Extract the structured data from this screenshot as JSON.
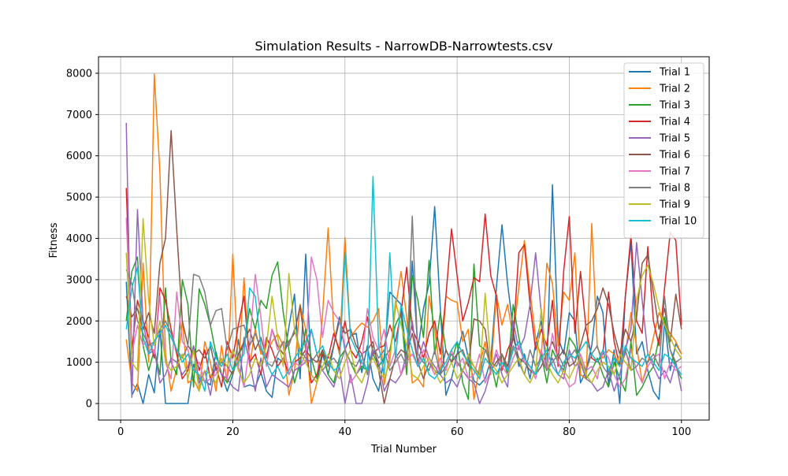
{
  "chart_data": {
    "type": "line",
    "title": "Simulation Results - NarrowDB-Narrowtests.csv",
    "xlabel": "Trial Number",
    "ylabel": "Fitness",
    "xlim": [
      -3.95,
      104.95
    ],
    "ylim": [
      -400,
      8400
    ],
    "xticks": [
      0,
      20,
      40,
      60,
      80,
      100
    ],
    "yticks": [
      0,
      1000,
      2000,
      3000,
      4000,
      5000,
      6000,
      7000,
      8000
    ],
    "grid": true,
    "legend_position": "top-right",
    "x": [
      1,
      2,
      3,
      4,
      5,
      6,
      7,
      8,
      9,
      10,
      11,
      12,
      13,
      14,
      15,
      16,
      17,
      18,
      19,
      20,
      21,
      22,
      23,
      24,
      25,
      26,
      27,
      28,
      29,
      30,
      31,
      32,
      33,
      34,
      35,
      36,
      37,
      38,
      39,
      40,
      41,
      42,
      43,
      44,
      45,
      46,
      47,
      48,
      49,
      50,
      51,
      52,
      53,
      54,
      55,
      56,
      57,
      58,
      59,
      60,
      61,
      62,
      63,
      64,
      65,
      66,
      67,
      68,
      69,
      70,
      71,
      72,
      73,
      74,
      75,
      76,
      77,
      78,
      79,
      80,
      81,
      82,
      83,
      84,
      85,
      86,
      87,
      88,
      89,
      90,
      91,
      92,
      93,
      94,
      95,
      96,
      97,
      98,
      99,
      100
    ],
    "series": [
      {
        "name": "Trial 1",
        "color": "#1f77b4",
        "values": [
          2950,
          200,
          480,
          0,
          700,
          260,
          1800,
          0,
          0,
          0,
          0,
          0,
          950,
          600,
          550,
          450,
          1250,
          700,
          300,
          700,
          1550,
          400,
          450,
          400,
          750,
          300,
          150,
          1100,
          1000,
          1850,
          2650,
          600,
          3620,
          700,
          500,
          1200,
          700,
          1400,
          2100,
          1300,
          1650,
          1700,
          750,
          1400,
          600,
          300,
          1150,
          2700,
          2550,
          2400,
          1050,
          3450,
          1300,
          2300,
          2900,
          4770,
          2300,
          200,
          600,
          1200,
          1750,
          1100,
          550,
          450,
          600,
          1050,
          2800,
          4330,
          2900,
          1800,
          900,
          1200,
          600,
          1450,
          2000,
          800,
          5300,
          1600,
          1200,
          2200,
          2000,
          500,
          800,
          1400,
          2600,
          2200,
          450,
          1300,
          0,
          2600,
          3900,
          1200,
          1500,
          800,
          300,
          100,
          2000,
          800,
          1450,
          1200
        ]
      },
      {
        "name": "Trial 2",
        "color": "#ff7f0e",
        "values": [
          1550,
          500,
          300,
          3400,
          1000,
          7980,
          5600,
          1200,
          300,
          850,
          2000,
          500,
          600,
          300,
          1500,
          1000,
          300,
          1400,
          500,
          3620,
          800,
          3040,
          900,
          1800,
          1200,
          1200,
          1500,
          1680,
          1400,
          200,
          800,
          2400,
          1800,
          0,
          500,
          2150,
          4250,
          1800,
          1200,
          4020,
          1600,
          1800,
          1950,
          1850,
          2000,
          2300,
          450,
          1200,
          2300,
          3200,
          2100,
          500,
          600,
          400,
          2600,
          1800,
          700,
          2600,
          2500,
          2450,
          1500,
          1800,
          100,
          900,
          1500,
          700,
          2650,
          1900,
          2400,
          1600,
          2800,
          3950,
          2700,
          1600,
          1100,
          3400,
          2900,
          1400,
          2700,
          2500,
          3650,
          700,
          600,
          4360,
          1350,
          1100,
          1300,
          1200,
          900,
          1200,
          2200,
          1400,
          500,
          1000,
          1600,
          2200,
          1900,
          1700,
          1500,
          1200
        ]
      },
      {
        "name": "Trial 3",
        "color": "#2ca02c",
        "values": [
          2000,
          3200,
          3550,
          1400,
          800,
          1300,
          700,
          2800,
          1000,
          700,
          3000,
          2400,
          400,
          2780,
          2400,
          1900,
          1200,
          700,
          500,
          800,
          1200,
          1400,
          2300,
          1800,
          2500,
          2300,
          3100,
          3430,
          2200,
          1300,
          500,
          1000,
          1800,
          1100,
          600,
          1300,
          700,
          500,
          1100,
          1300,
          1000,
          700,
          900,
          800,
          1200,
          900,
          1100,
          1300,
          1900,
          2200,
          700,
          3100,
          2500,
          1600,
          3470,
          1200,
          2200,
          1300,
          1000,
          1500,
          500,
          100,
          3380,
          1400,
          1300,
          1000,
          400,
          1200,
          700,
          2400,
          1600,
          1000,
          800,
          700,
          1200,
          500,
          1300,
          1000,
          800,
          1600,
          1400,
          1000,
          600,
          800,
          1100,
          700,
          400,
          1000,
          600,
          300,
          1500,
          200,
          400,
          700,
          900,
          1600,
          2100,
          1300,
          900,
          600
        ]
      },
      {
        "name": "Trial 4",
        "color": "#d62728",
        "values": [
          5220,
          1300,
          2500,
          2000,
          1600,
          1100,
          2800,
          2500,
          1800,
          1200,
          600,
          800,
          1400,
          800,
          1300,
          600,
          900,
          400,
          1500,
          1100,
          1900,
          2600,
          1000,
          1200,
          700,
          1600,
          1300,
          900,
          1100,
          700,
          1000,
          1100,
          1300,
          500,
          700,
          1200,
          1100,
          1700,
          1300,
          2000,
          1300,
          1100,
          1500,
          2100,
          1200,
          1350,
          1400,
          1900,
          1500,
          2200,
          3300,
          1800,
          1500,
          1100,
          1700,
          2000,
          1200,
          2600,
          4230,
          3100,
          2000,
          2450,
          3050,
          2950,
          4590,
          3100,
          2600,
          800,
          1300,
          1600,
          3650,
          3850,
          2400,
          1300,
          1800,
          1400,
          2500,
          900,
          3200,
          4530,
          1700,
          3200,
          1800,
          1100,
          1000,
          1200,
          2700,
          1500,
          900,
          2600,
          4080,
          2000,
          1700,
          3800,
          2000,
          1400,
          2800,
          4150,
          3950,
          1900
        ]
      },
      {
        "name": "Trial 5",
        "color": "#9467bd",
        "values": [
          6800,
          150,
          4700,
          2000,
          1200,
          1300,
          500,
          700,
          1100,
          1000,
          700,
          900,
          1400,
          500,
          800,
          200,
          1000,
          700,
          600,
          400,
          300,
          1600,
          1000,
          300,
          1100,
          400,
          700,
          600,
          500,
          400,
          800,
          900,
          1000,
          1800,
          1200,
          800,
          600,
          400,
          900,
          0,
          700,
          0,
          0,
          500,
          1300,
          1000,
          300,
          600,
          500,
          700,
          1200,
          2000,
          1000,
          1500,
          1100,
          900,
          700,
          500,
          600,
          400,
          800,
          600,
          500,
          0,
          300,
          800,
          1200,
          700,
          400,
          2000,
          1300,
          1600,
          2400,
          3650,
          2200,
          800,
          1100,
          700,
          600,
          1300,
          900,
          1000,
          600,
          500,
          300,
          400,
          800,
          300,
          700,
          1300,
          1800,
          3900,
          2500,
          1200,
          900,
          600,
          800,
          500,
          1000,
          300
        ]
      },
      {
        "name": "Trial 6",
        "color": "#8c564b",
        "values": [
          2600,
          2100,
          2300,
          1800,
          2200,
          1700,
          3400,
          4000,
          6610,
          4200,
          2000,
          1400,
          1200,
          1300,
          1100,
          1400,
          800,
          1000,
          900,
          700,
          1200,
          1500,
          1800,
          1300,
          1600,
          1100,
          1800,
          1400,
          1200,
          1500,
          1700,
          2370,
          1300,
          1100,
          1000,
          1300,
          900,
          1400,
          2000,
          1700,
          1800,
          1400,
          1200,
          1300,
          1500,
          800,
          0,
          600,
          1100,
          1300,
          1200,
          1700,
          1000,
          600,
          1000,
          800,
          700,
          1300,
          1000,
          1200,
          1300,
          900,
          2050,
          2000,
          1800,
          800,
          1000,
          1200,
          900,
          1600,
          1100,
          1000,
          800,
          700,
          900,
          1200,
          1500,
          1100,
          1300,
          900,
          1000,
          1400,
          1900,
          2000,
          2300,
          2800,
          2400,
          1700,
          1200,
          1800,
          1500,
          2100,
          3400,
          3600,
          2700,
          1800,
          2300,
          1500,
          2650,
          1800
        ]
      },
      {
        "name": "Trial 7",
        "color": "#e377c2",
        "values": [
          4500,
          1200,
          1900,
          1400,
          1600,
          1200,
          2600,
          1000,
          600,
          2700,
          1500,
          1300,
          800,
          1000,
          500,
          600,
          700,
          1100,
          600,
          1300,
          900,
          400,
          1400,
          3130,
          2100,
          900,
          1800,
          1300,
          1500,
          700,
          1000,
          900,
          1200,
          3550,
          3000,
          1600,
          2500,
          2200,
          2000,
          1400,
          500,
          700,
          1000,
          2300,
          1600,
          1300,
          1800,
          900,
          1300,
          700,
          1000,
          1200,
          900,
          1300,
          1000,
          700,
          1100,
          800,
          1300,
          900,
          1100,
          600,
          700,
          1200,
          500,
          800,
          1300,
          900,
          700,
          1100,
          1400,
          1000,
          900,
          600,
          1300,
          800,
          1700,
          1000,
          700,
          400,
          500,
          1200,
          800,
          900,
          600,
          1300,
          1100,
          700,
          400,
          600,
          1300,
          800,
          500,
          900,
          1100,
          1200,
          600,
          1000,
          800,
          900
        ]
      },
      {
        "name": "Trial 8",
        "color": "#7f7f7f",
        "values": [
          3250,
          2900,
          2000,
          1700,
          1400,
          1500,
          1800,
          2000,
          1700,
          1300,
          1100,
          1400,
          3130,
          3080,
          2700,
          1900,
          2250,
          2300,
          1300,
          1800,
          1850,
          1900,
          1400,
          1700,
          1300,
          1000,
          900,
          1200,
          1500,
          1400,
          1800,
          1300,
          1100,
          1000,
          1200,
          800,
          1000,
          1100,
          900,
          1300,
          1000,
          900,
          1200,
          700,
          1400,
          1100,
          1300,
          800,
          1000,
          1200,
          900,
          4540,
          1200,
          1000,
          800,
          1300,
          700,
          900,
          1200,
          1000,
          800,
          1100,
          900,
          700,
          1300,
          1000,
          900,
          1200,
          800,
          1400,
          1000,
          700,
          1300,
          900,
          1100,
          800,
          1000,
          1200,
          900,
          1100,
          1300,
          1000,
          800,
          1200,
          1400,
          900,
          700,
          1100,
          1000,
          1300,
          800,
          900,
          1100,
          1000,
          1200,
          900,
          2600,
          1300,
          1000,
          1100
        ]
      },
      {
        "name": "Trial 9",
        "color": "#bcbd22",
        "values": [
          3650,
          1000,
          800,
          4480,
          2500,
          1400,
          2000,
          1000,
          800,
          900,
          1200,
          600,
          1300,
          300,
          800,
          700,
          500,
          1100,
          900,
          1300,
          800,
          500,
          700,
          1100,
          900,
          1400,
          2600,
          1600,
          900,
          3150,
          1800,
          1200,
          1000,
          700,
          500,
          900,
          1200,
          800,
          600,
          1000,
          1300,
          700,
          500,
          900,
          1100,
          800,
          600,
          1000,
          2500,
          1900,
          1400,
          700,
          600,
          900,
          1100,
          800,
          500,
          700,
          1000,
          600,
          800,
          1200,
          900,
          600,
          2670,
          1000,
          800,
          500,
          700,
          900,
          1100,
          700,
          500,
          800,
          2300,
          1000,
          700,
          500,
          800,
          600,
          900,
          1100,
          700,
          500,
          800,
          1000,
          900,
          700,
          1200,
          1000,
          800,
          2500,
          3100,
          3350,
          2900,
          2300,
          1900,
          1600,
          1300,
          1100
        ]
      },
      {
        "name": "Trial 10",
        "color": "#17becf",
        "values": [
          1800,
          2800,
          3300,
          1600,
          1200,
          1500,
          1700,
          1900,
          1600,
          1300,
          1000,
          1200,
          800,
          700,
          300,
          1500,
          1100,
          900,
          1200,
          800,
          1000,
          1200,
          2800,
          2600,
          1400,
          1000,
          700,
          900,
          600,
          800,
          1100,
          1300,
          1500,
          1800,
          1200,
          1400,
          1000,
          800,
          900,
          3660,
          1600,
          1300,
          1000,
          800,
          5500,
          1400,
          700,
          3650,
          1100,
          2400,
          1800,
          1300,
          900,
          1100,
          700,
          600,
          800,
          1000,
          1300,
          1500,
          1200,
          1000,
          800,
          600,
          1100,
          900,
          700,
          1000,
          800,
          1300,
          1500,
          1100,
          900,
          700,
          1100,
          1300,
          900,
          700,
          1000,
          1200,
          1100,
          1300,
          1500,
          1200,
          1000,
          1300,
          800,
          1100,
          900,
          1400,
          1100,
          1000,
          900,
          1200,
          1000,
          800,
          1200,
          1100,
          900,
          700
        ]
      }
    ]
  }
}
